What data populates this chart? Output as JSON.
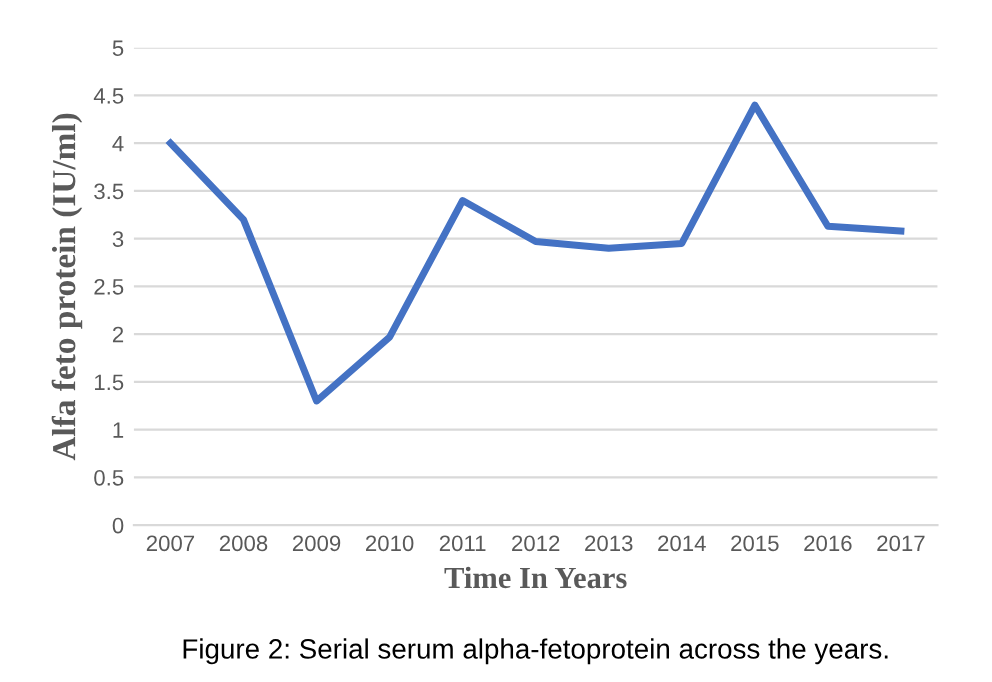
{
  "chart_data": {
    "type": "line",
    "xlabel": "Time In Years",
    "ylabel": "Alfa feto protein (IU/ml)",
    "categories": [
      "2007",
      "2008",
      "2009",
      "2010",
      "2011",
      "2012",
      "2013",
      "2014",
      "2015",
      "2016",
      "2017"
    ],
    "series": [
      {
        "color": "#4472c4",
        "values": [
          4.0,
          3.2,
          1.3,
          1.97,
          3.4,
          2.97,
          2.9,
          2.95,
          4.4,
          3.13,
          3.08
        ]
      }
    ],
    "ylim": [
      0,
      5
    ],
    "yticks": [
      0,
      0.5,
      1,
      1.5,
      2,
      2.5,
      3,
      3.5,
      4,
      4.5,
      5
    ],
    "grid": "y",
    "marker": "none",
    "line_style": "solid",
    "annotations": [
      "Figure 2: Serial serum alpha-fetoprotein across the years."
    ]
  }
}
